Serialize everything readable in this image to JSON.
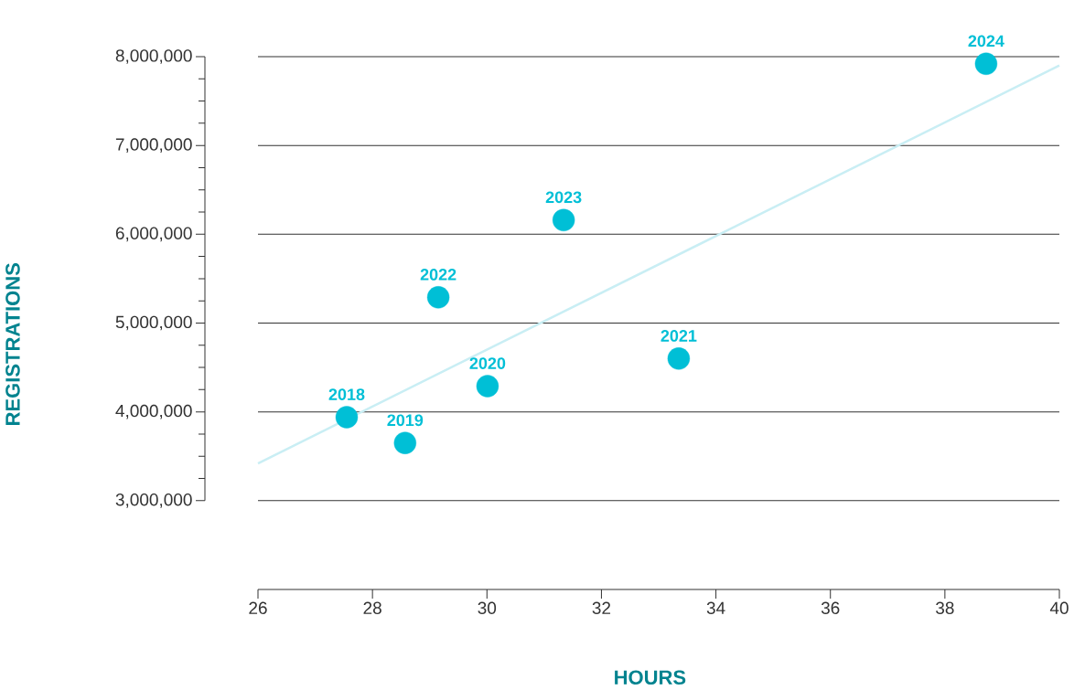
{
  "chart_data": {
    "type": "scatter",
    "xlabel": "HOURS",
    "ylabel": "REGISTRATIONS",
    "xlim": [
      26,
      40
    ],
    "ylim": [
      2000000,
      8000000
    ],
    "xticks": [
      26,
      28,
      30,
      32,
      34,
      36,
      38,
      40
    ],
    "yticks": [
      {
        "value": 3000000,
        "label": "3,000,000"
      },
      {
        "value": 4000000,
        "label": "4,000,000"
      },
      {
        "value": 5000000,
        "label": "5,000,000"
      },
      {
        "value": 6000000,
        "label": "6,000,000"
      },
      {
        "value": 7000000,
        "label": "7,000,000"
      },
      {
        "value": 8000000,
        "label": "8,000,000"
      }
    ],
    "grid": "y",
    "marker": "circle",
    "series": [
      {
        "color": "#00bfd6",
        "x": [
          27.55,
          28.57,
          30.01,
          33.35,
          29.15,
          31.34,
          38.72
        ],
        "values": [
          3940000,
          3650000,
          4290000,
          4600000,
          5290000,
          6160000,
          7920000
        ]
      },
      {
        "type": "line",
        "color": "#c9eef4",
        "marker": "none",
        "x": [
          26,
          40
        ],
        "values": [
          3420000,
          7900000
        ]
      }
    ],
    "annotations": [
      {
        "text": "2018",
        "x": 27.55,
        "y": 3940000
      },
      {
        "text": "2019",
        "x": 28.57,
        "y": 3650000
      },
      {
        "text": "2020",
        "x": 30.01,
        "y": 4290000
      },
      {
        "text": "2021",
        "x": 33.35,
        "y": 4600000
      },
      {
        "text": "2022",
        "x": 29.15,
        "y": 5290000
      },
      {
        "text": "2023",
        "x": 31.34,
        "y": 6160000
      },
      {
        "text": "2024",
        "x": 38.72,
        "y": 7920000
      }
    ]
  }
}
